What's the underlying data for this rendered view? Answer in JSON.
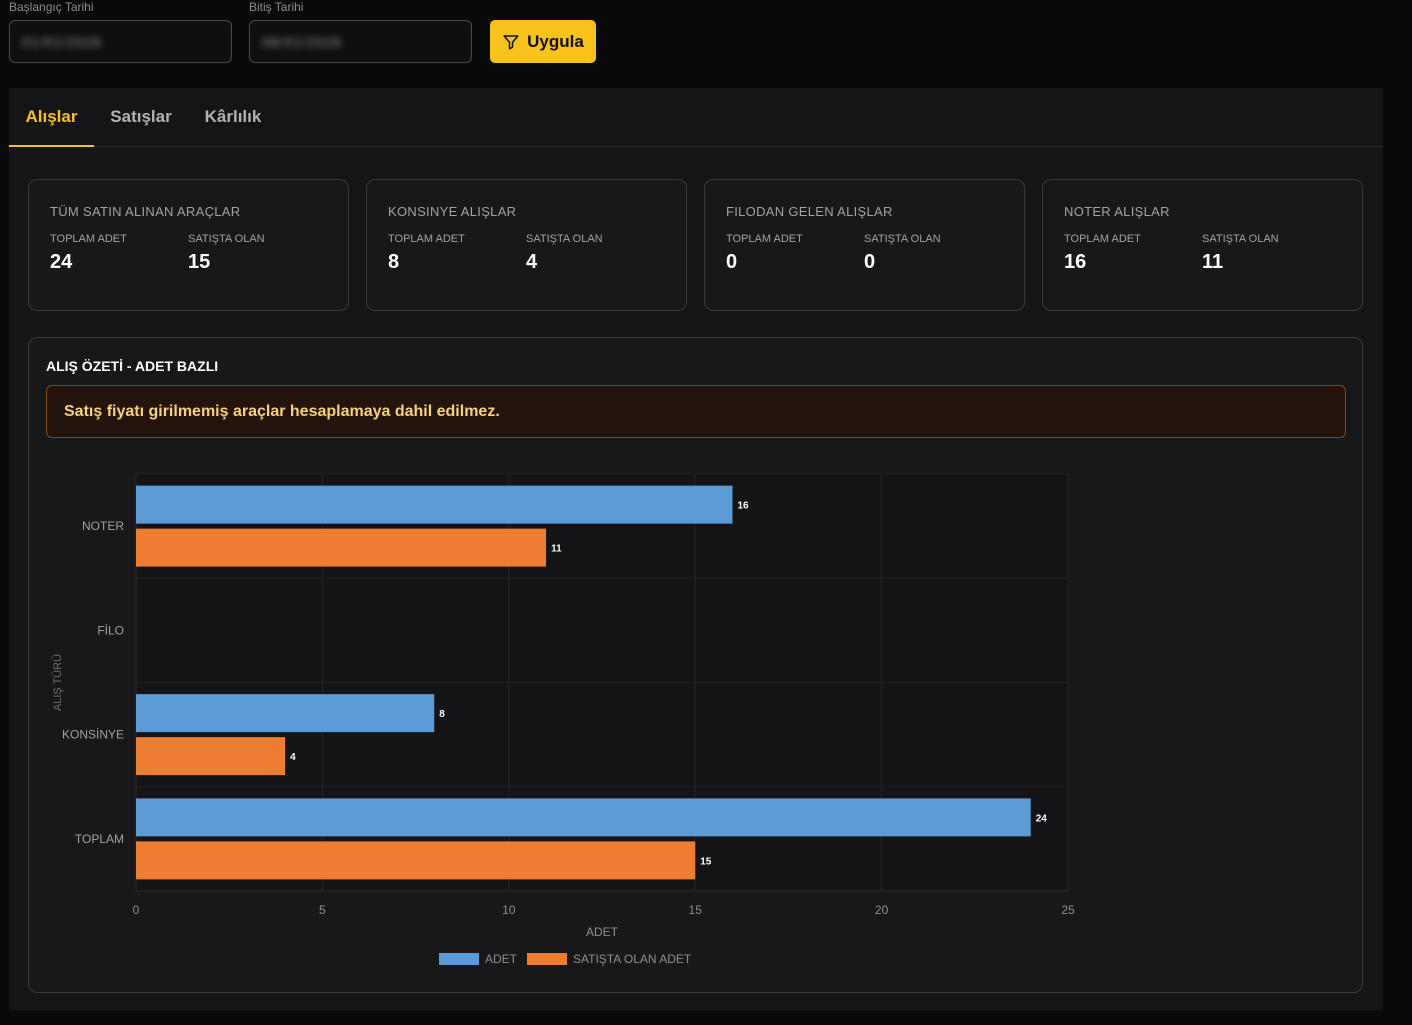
{
  "filters": {
    "start_label": "Başlangıç Tarihi",
    "start_value": "01/01/2026",
    "end_label": "Bitiş Tarihi",
    "end_value": "08/01/2026",
    "apply_label": "Uygula"
  },
  "tabs": [
    {
      "label": "Alışlar",
      "active": true
    },
    {
      "label": "Satışlar",
      "active": false
    },
    {
      "label": "Kârlılık",
      "active": false
    }
  ],
  "cards": [
    {
      "title": "TÜM SATIN ALINAN ARAÇLAR",
      "total_label": "TOPLAM ADET",
      "total": "24",
      "onsale_label": "SATIŞTA OLAN",
      "onsale": "15"
    },
    {
      "title": "KONSINYE ALIŞLAR",
      "total_label": "TOPLAM ADET",
      "total": "8",
      "onsale_label": "SATIŞTA OLAN",
      "onsale": "4"
    },
    {
      "title": "FILODAN GELEN ALIŞLAR",
      "total_label": "TOPLAM ADET",
      "total": "0",
      "onsale_label": "SATIŞTA OLAN",
      "onsale": "0"
    },
    {
      "title": "NOTER ALIŞLAR",
      "total_label": "TOPLAM ADET",
      "total": "16",
      "onsale_label": "SATIŞTA OLAN",
      "onsale": "11"
    }
  ],
  "chart_section": {
    "title": "ALIŞ ÖZETİ - ADET BAZLI",
    "warning": "Satış fiyatı girilmemiş araçlar hesaplamaya dahil edilmez."
  },
  "colors": {
    "accent": "#f6c21b",
    "series_adet": "#5b9bd5",
    "series_satista": "#ed7d31"
  },
  "chart_data": {
    "type": "bar",
    "orientation": "horizontal",
    "categories": [
      "NOTER",
      "FİLO",
      "KONSİNYE",
      "TOPLAM"
    ],
    "series": [
      {
        "name": "ADET",
        "values": [
          16,
          0,
          8,
          24
        ]
      },
      {
        "name": "SATIŞTA OLAN ADET",
        "values": [
          11,
          0,
          4,
          15
        ]
      }
    ],
    "xlabel": "ADET",
    "ylabel": "ALIŞ TÜRÜ",
    "xlim": [
      0,
      25
    ],
    "xticks": [
      0,
      5,
      10,
      15,
      20,
      25
    ],
    "grid": true,
    "legend_position": "bottom"
  }
}
